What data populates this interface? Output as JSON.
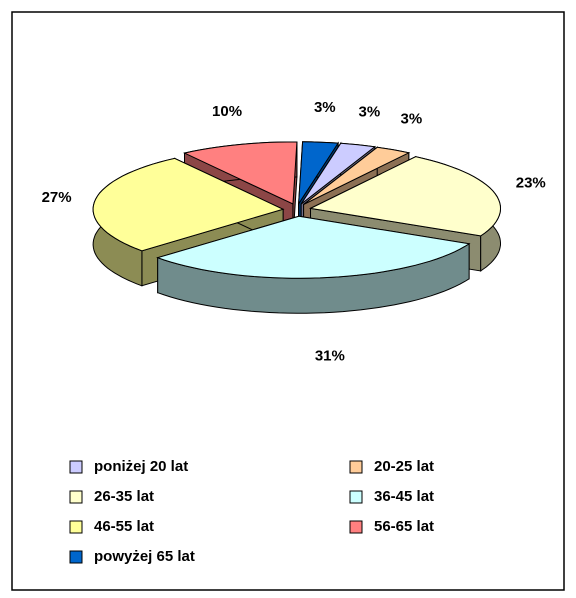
{
  "chart_data": {
    "type": "pie3d",
    "categories": [
      "poniżej 20 lat",
      "20-25 lat",
      "26-35 lat",
      "36-45 lat",
      "46-55 lat",
      "56-65 lat",
      "powyżej 65 lat"
    ],
    "values": [
      3,
      3,
      23,
      31,
      27,
      10,
      3
    ],
    "value_labels": [
      "3%",
      "3%",
      "23%",
      "31%",
      "27%",
      "10%",
      "3%"
    ],
    "colors": [
      "#ccccff",
      "#ffcc99",
      "#ffffcc",
      "#ccffff",
      "#ffff99",
      "#ff8080",
      "#0066cc"
    ],
    "legend": "bottom"
  }
}
